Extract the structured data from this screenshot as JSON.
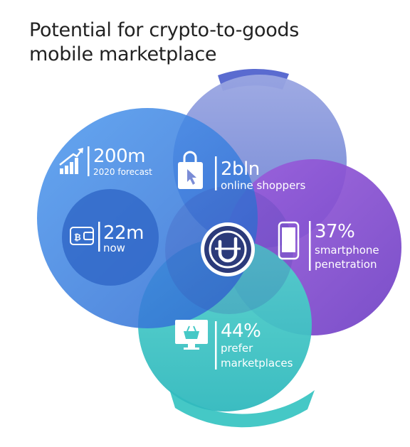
{
  "title": {
    "line1": "Potential for crypto-to-goods",
    "line2": "mobile marketplace"
  },
  "colors": {
    "title_text": "#222222",
    "blue_circle": "#3d7fe0",
    "inner_blue": "#2f68c8",
    "top_circle": "#7d8fd6",
    "purple_circle": "#8b4fd4",
    "teal_circle": "#3ec6c3",
    "center_logo": "#2b3a7a"
  },
  "stats": {
    "forecast": {
      "value": "200m",
      "label": "2020 forecast",
      "icon": "growth-chart-icon"
    },
    "now": {
      "value": "22m",
      "label": "now",
      "icon": "bitcoin-wallet-icon"
    },
    "shoppers": {
      "value": "2bln",
      "label": "online shoppers",
      "icon": "shopping-bag-icon"
    },
    "smartphone": {
      "value": "37%",
      "label_line1": "smartphone",
      "label_line2": "penetration",
      "icon": "smartphone-icon"
    },
    "marketplaces": {
      "value": "44%",
      "label_line1": "prefer",
      "label_line2": "marketplaces",
      "icon": "monitor-basket-icon"
    }
  },
  "logo": {
    "icon": "utrade-logo-icon"
  }
}
